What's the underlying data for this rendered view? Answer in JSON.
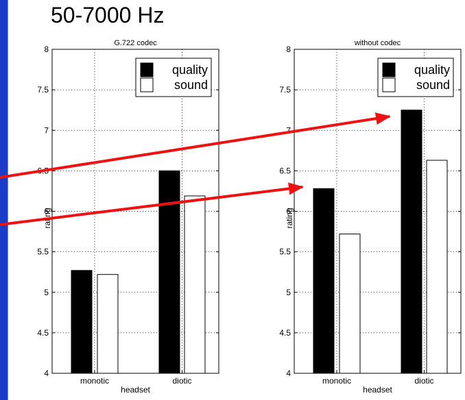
{
  "page": {
    "title": "50-7000 Hz"
  },
  "colors": {
    "quality": "#000000",
    "sound": "#ffffff",
    "arrow": "#ee1111",
    "side_bar": "#1a3cc8",
    "grid": "#000000"
  },
  "chart_data": [
    {
      "type": "bar",
      "title": "G.722 codec",
      "xlabel": "headset",
      "ylabel": "rating",
      "ylim": [
        4,
        8
      ],
      "yticks": [
        "4",
        "4.5",
        "5",
        "5.5",
        "6",
        "6.5",
        "7",
        "7.5",
        "8"
      ],
      "categories": [
        "monotic",
        "diotic"
      ],
      "series": [
        {
          "name": "quality",
          "values": [
            5.27,
            6.5
          ]
        },
        {
          "name": "sound",
          "values": [
            5.22,
            6.19
          ]
        }
      ],
      "legend_position": "top-right",
      "grid": true
    },
    {
      "type": "bar",
      "title": "without codec",
      "xlabel": "headset",
      "ylabel": "rating",
      "ylim": [
        4,
        8
      ],
      "yticks": [
        "4",
        "4.5",
        "5",
        "5.5",
        "6",
        "6.5",
        "7",
        "7.5",
        "8"
      ],
      "categories": [
        "monotic",
        "diotic"
      ],
      "series": [
        {
          "name": "quality",
          "values": [
            6.28,
            7.25
          ]
        },
        {
          "name": "sound",
          "values": [
            5.72,
            6.63
          ]
        }
      ],
      "legend_position": "top-right",
      "grid": true
    }
  ]
}
